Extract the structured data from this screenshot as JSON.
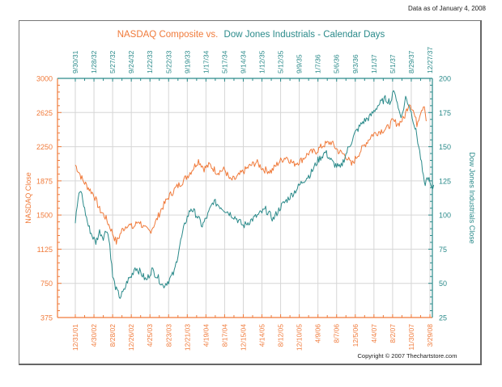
{
  "header": {
    "as_of": "Data as of January 4, 2008"
  },
  "footer": {
    "copyright": "Copyright © 2007 Thechartstore.com"
  },
  "colors": {
    "nasdaq": "#f07a3a",
    "dow": "#2a8a8a",
    "grid": "#d6d6d6",
    "frame": "#777777"
  },
  "chart_data": {
    "type": "line",
    "title_part1": "NASDAQ Composite vs.",
    "title_part2": "Dow Jones Industrials - Calendar Days",
    "ylabel_left": "NASDAQ Close",
    "ylabel_right": "Dow Jones Industrials Close",
    "grid": true,
    "left_axis": {
      "ylim": [
        375,
        3000
      ],
      "ticks": [
        "3000",
        "2625",
        "2250",
        "1875",
        "1500",
        "1125",
        "750",
        "375"
      ]
    },
    "right_axis": {
      "ylim": [
        25,
        200
      ],
      "ticks": [
        "200",
        "175",
        "150",
        "125",
        "100",
        "75",
        "50",
        "25"
      ]
    },
    "x_bottom_ticks": [
      "12/31/01",
      "4/30/02",
      "8/28/02",
      "12/26/02",
      "4/25/03",
      "8/23/03",
      "12/21/03",
      "4/19/04",
      "8/17/04",
      "12/15/04",
      "4/14/05",
      "8/12/05",
      "12/10/05",
      "4/9/06",
      "8/7/06",
      "12/5/06",
      "4/4/07",
      "8/2/07",
      "11/30/07",
      "3/29/08"
    ],
    "x_top_ticks": [
      "9/30/31",
      "1/28/32",
      "5/27/32",
      "9/24/32",
      "1/22/33",
      "5/22/33",
      "9/19/33",
      "1/17/34",
      "5/17/34",
      "9/14/34",
      "1/12/35",
      "5/12/35",
      "9/9/35",
      "1/7/36",
      "5/6/36",
      "9/3/36",
      "1/1/37",
      "5/1/37",
      "8/29/37",
      "12/27/37"
    ],
    "series": [
      {
        "name": "NASDAQ Composite",
        "axis": "left",
        "x_tick_index": [
          0.0,
          0.2,
          0.4,
          0.7,
          1.0,
          1.3,
          1.6,
          1.9,
          2.2,
          2.5,
          2.8,
          3.1,
          3.4,
          3.7,
          4.0,
          4.3,
          4.6,
          5.0,
          5.4,
          5.8,
          6.2,
          6.6,
          6.9,
          7.2,
          7.6,
          8.0,
          8.3,
          8.6,
          8.9,
          9.3,
          9.7,
          10.1,
          10.5,
          10.9,
          11.3,
          11.7,
          12.1,
          12.5,
          12.9,
          13.3,
          13.7,
          14.1,
          14.5,
          14.8,
          15.1,
          15.5,
          15.9,
          16.3,
          16.7,
          17.0,
          17.3,
          17.6,
          17.9,
          18.1,
          18.3,
          18.5,
          18.7,
          18.8
        ],
        "values": [
          2050,
          1970,
          1880,
          1800,
          1720,
          1560,
          1480,
          1350,
          1200,
          1330,
          1400,
          1360,
          1440,
          1350,
          1320,
          1420,
          1560,
          1700,
          1800,
          1880,
          1980,
          2100,
          2010,
          2050,
          1970,
          2000,
          1880,
          1900,
          1960,
          2030,
          2080,
          2000,
          1980,
          2080,
          2140,
          2060,
          2100,
          2180,
          2200,
          2270,
          2300,
          2200,
          2150,
          2050,
          2150,
          2270,
          2380,
          2420,
          2450,
          2530,
          2500,
          2560,
          2740,
          2650,
          2500,
          2640,
          2720,
          2530
        ]
      },
      {
        "name": "Dow Jones Industrials",
        "axis": "right",
        "x_tick_index": [
          0.0,
          0.15,
          0.3,
          0.5,
          0.7,
          0.9,
          1.1,
          1.3,
          1.5,
          1.7,
          1.85,
          2.0,
          2.2,
          2.4,
          2.6,
          2.8,
          3.0,
          3.2,
          3.5,
          3.8,
          4.1,
          4.4,
          4.7,
          5.0,
          5.3,
          5.6,
          5.9,
          6.2,
          6.5,
          6.8,
          7.1,
          7.4,
          7.8,
          8.2,
          8.6,
          9.0,
          9.4,
          9.8,
          10.2,
          10.6,
          11.0,
          11.4,
          11.8,
          12.2,
          12.6,
          13.0,
          13.4,
          13.8,
          14.2,
          14.6,
          15.0,
          15.4,
          15.8,
          16.2,
          16.6,
          16.9,
          17.1,
          17.3,
          17.5,
          17.7,
          17.9,
          18.1,
          18.3,
          18.5,
          18.7,
          18.9,
          19.1,
          19.2
        ],
        "values": [
          95,
          112,
          118,
          104,
          92,
          85,
          80,
          88,
          84,
          90,
          78,
          55,
          45,
          40,
          44,
          52,
          55,
          62,
          58,
          52,
          60,
          55,
          48,
          52,
          58,
          78,
          95,
          105,
          100,
          92,
          100,
          110,
          106,
          102,
          98,
          92,
          96,
          100,
          104,
          97,
          106,
          112,
          118,
          125,
          130,
          140,
          146,
          138,
          134,
          148,
          160,
          168,
          172,
          180,
          185,
          183,
          192,
          178,
          172,
          186,
          180,
          170,
          158,
          142,
          122,
          128,
          118,
          122
        ]
      }
    ]
  }
}
